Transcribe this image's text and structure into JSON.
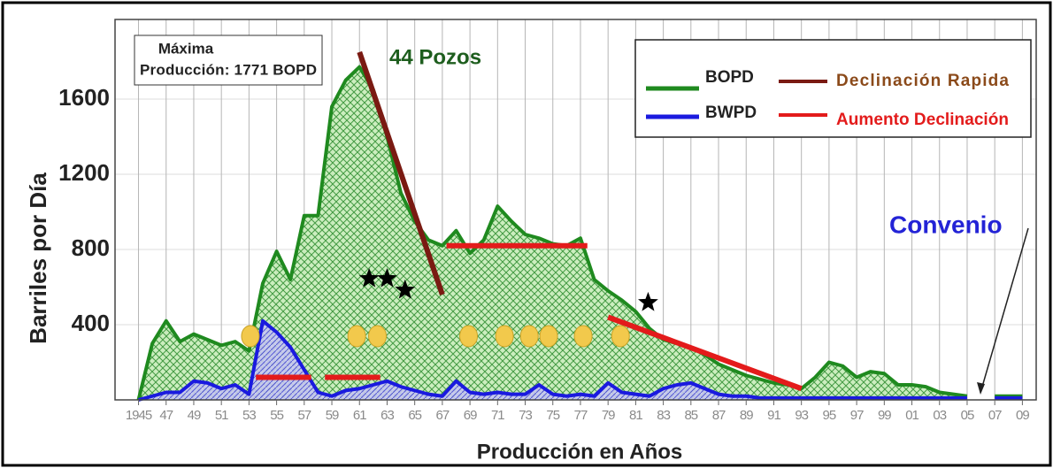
{
  "chart_data": {
    "type": "area",
    "ylabel": "Barriles por Día",
    "xlabel": "Producción en Años",
    "annotations": {
      "max_line1": "Máxima",
      "max_line2": "Producción: 1771 BOPD",
      "wells": "44 Pozos",
      "agreement": "Convenio"
    },
    "x": [
      1945,
      1946,
      1947,
      1948,
      1949,
      1950,
      1951,
      1952,
      1953,
      1954,
      1955,
      1956,
      1957,
      1958,
      1959,
      1960,
      1961,
      1962,
      1963,
      1964,
      1965,
      1966,
      1967,
      1968,
      1969,
      1970,
      1971,
      1972,
      1973,
      1974,
      1975,
      1976,
      1977,
      1978,
      1979,
      1980,
      1981,
      1982,
      1983,
      1984,
      1985,
      1986,
      1987,
      1988,
      1989,
      1990,
      1991,
      1992,
      1993,
      1994,
      1995,
      1996,
      1997,
      1998,
      1999,
      2000,
      2001,
      2002,
      2003,
      2004,
      2005,
      2006,
      2007,
      2008,
      2009
    ],
    "series": [
      {
        "name": "BOPD",
        "color": "#1f8a1f",
        "values": [
          0,
          300,
          420,
          310,
          350,
          320,
          290,
          310,
          260,
          620,
          790,
          640,
          980,
          980,
          1560,
          1700,
          1771,
          1650,
          1400,
          1100,
          950,
          850,
          820,
          900,
          780,
          850,
          1030,
          950,
          880,
          860,
          830,
          820,
          860,
          640,
          580,
          530,
          470,
          380,
          320,
          300,
          280,
          240,
          190,
          160,
          130,
          110,
          90,
          80,
          60,
          120,
          200,
          180,
          120,
          150,
          140,
          80,
          80,
          70,
          40,
          30,
          20,
          null,
          20,
          20,
          20
        ]
      },
      {
        "name": "BWPD",
        "color": "#1a1adf",
        "values": [
          0,
          20,
          40,
          40,
          100,
          90,
          60,
          80,
          30,
          420,
          360,
          280,
          160,
          40,
          20,
          50,
          60,
          80,
          100,
          70,
          50,
          30,
          20,
          100,
          40,
          30,
          40,
          30,
          30,
          80,
          30,
          20,
          30,
          20,
          90,
          40,
          30,
          20,
          60,
          80,
          90,
          60,
          30,
          20,
          20,
          10,
          10,
          10,
          10,
          10,
          10,
          10,
          10,
          10,
          10,
          10,
          10,
          10,
          10,
          10,
          10,
          null,
          10,
          10,
          10
        ]
      }
    ],
    "trend_series": [
      {
        "name": "Declinación Rapida",
        "color": "#7a1a12",
        "segments": [
          {
            "x": [
              1961,
              1967
            ],
            "values": [
              1850,
              560
            ]
          }
        ]
      },
      {
        "name": "Aumento Declinación",
        "color": "#e31b1b",
        "segments": [
          {
            "x": [
              1967.3,
              1977.5
            ],
            "values": [
              820,
              820
            ]
          },
          {
            "x": [
              1979,
              1993
            ],
            "values": [
              440,
              60
            ]
          },
          {
            "x": [
              1953.5,
              1957.5
            ],
            "values": [
              120,
              120
            ]
          },
          {
            "x": [
              1958.5,
              1962.5
            ],
            "values": [
              120,
              120
            ]
          }
        ]
      }
    ],
    "circle_markers": {
      "color": "#f2c94c",
      "x": [
        1953.1,
        1960.8,
        1962.3,
        1968.9,
        1971.5,
        1973.3,
        1974.7,
        1977.2,
        1979.9
      ],
      "values": [
        339,
        339,
        339,
        339,
        339,
        339,
        339,
        339,
        339
      ]
    },
    "star_markers": {
      "color": "#000000",
      "x": [
        1961.7,
        1963.0,
        1964.3,
        1981.9
      ],
      "values": [
        645,
        645,
        584,
        518
      ]
    },
    "xlim": [
      1943.3,
      2010
    ],
    "ylim": [
      0,
      2000
    ],
    "yticks": [
      400,
      800,
      1200,
      1600
    ],
    "xticks": [
      1945,
      {
        "value": 1947,
        "label": "47"
      },
      {
        "value": 1949,
        "label": "49"
      },
      {
        "value": 1951,
        "label": "51"
      },
      {
        "value": 1953,
        "label": "53"
      },
      {
        "value": 1955,
        "label": "55"
      },
      {
        "value": 1957,
        "label": "57"
      },
      {
        "value": 1959,
        "label": "59"
      },
      {
        "value": 1961,
        "label": "61"
      },
      {
        "value": 1963,
        "label": "63"
      },
      {
        "value": 1965,
        "label": "65"
      },
      {
        "value": 1967,
        "label": "67"
      },
      {
        "value": 1969,
        "label": "69"
      },
      {
        "value": 1971,
        "label": "71"
      },
      {
        "value": 1973,
        "label": "73"
      },
      {
        "value": 1975,
        "label": "75"
      },
      {
        "value": 1977,
        "label": "77"
      },
      {
        "value": 1979,
        "label": "79"
      },
      {
        "value": 1981,
        "label": "81"
      },
      {
        "value": 1983,
        "label": "83"
      },
      {
        "value": 1985,
        "label": "85"
      },
      {
        "value": 1987,
        "label": "87"
      },
      {
        "value": 1989,
        "label": "89"
      },
      {
        "value": 1991,
        "label": "91"
      },
      {
        "value": 1993,
        "label": "93"
      },
      {
        "value": 1995,
        "label": "95"
      },
      {
        "value": 1997,
        "label": "97"
      },
      {
        "value": 1999,
        "label": "99"
      },
      {
        "value": 2001,
        "label": "01"
      },
      {
        "value": 2003,
        "label": "03"
      },
      {
        "value": 2005,
        "label": "05"
      },
      {
        "value": 2007,
        "label": "07"
      },
      {
        "value": 2009,
        "label": "09"
      }
    ],
    "grid": true
  }
}
